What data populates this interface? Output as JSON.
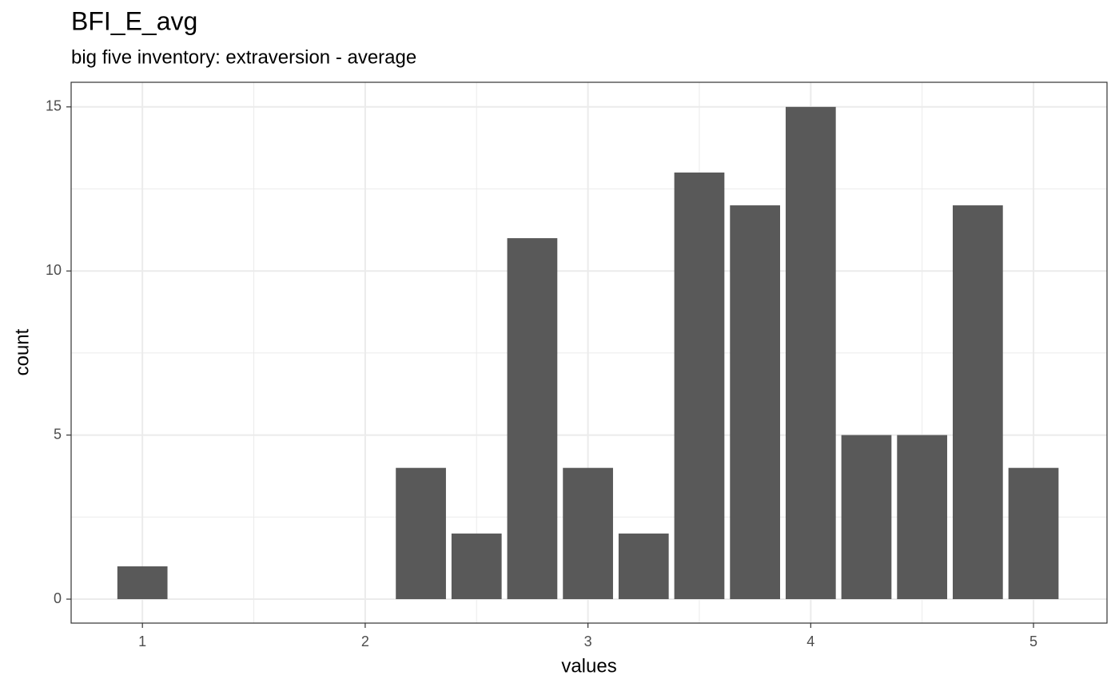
{
  "chart_data": {
    "type": "bar",
    "title": "BFI_E_avg",
    "subtitle": "big five inventory: extraversion - average",
    "x_label": "values",
    "y_label": "count",
    "x": [
      1,
      2.25,
      2.5,
      2.75,
      3,
      3.25,
      3.5,
      3.75,
      4,
      4.25,
      4.5,
      4.75,
      5
    ],
    "values": [
      1,
      4,
      2,
      11,
      4,
      2,
      13,
      12,
      15,
      5,
      5,
      12,
      4
    ],
    "color": "#595959",
    "xlim": [
      0.68,
      5.33
    ],
    "xticks": [
      1,
      2,
      3,
      4,
      5
    ],
    "ylim": [
      -0.73,
      15.75
    ],
    "yticks": [
      0,
      5,
      10,
      15
    ],
    "grid": true
  }
}
